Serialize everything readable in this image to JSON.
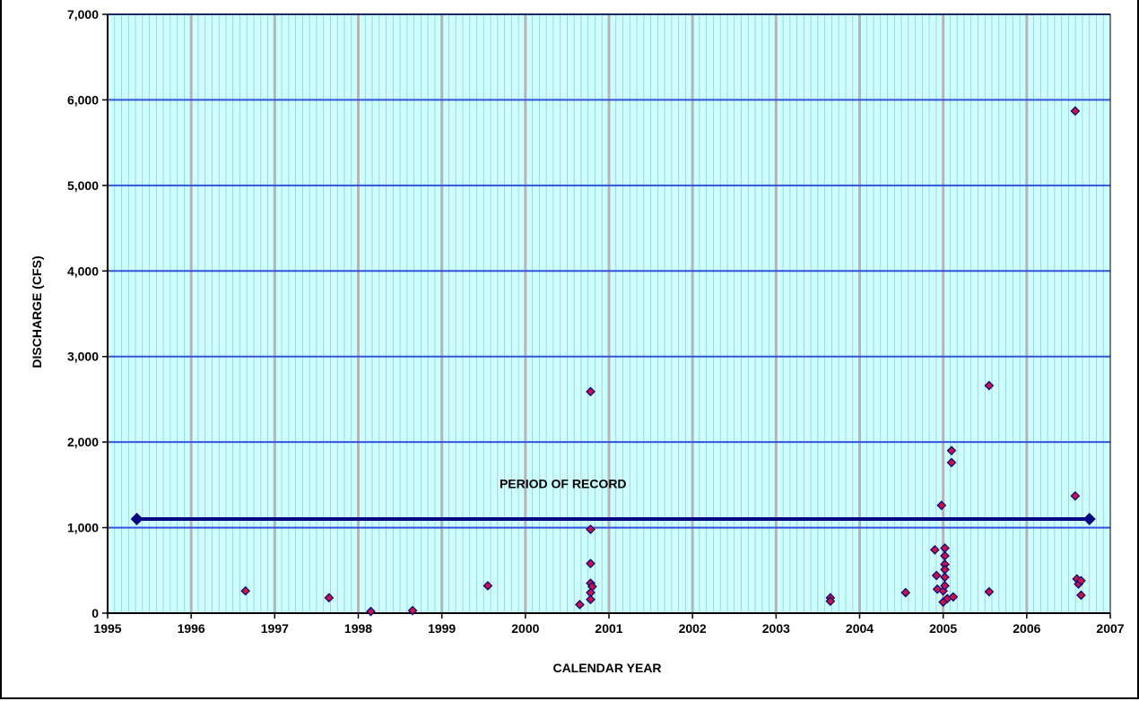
{
  "colors": {
    "plot_bg": "#ccffff",
    "minor_grid": "#a8c4c8",
    "major_vgrid": "#b5b5b5",
    "hgrid": "#3355dd",
    "marker_fill": "#cc1144",
    "marker_stroke": "#000080",
    "period_line": "#000080"
  },
  "chart_data": {
    "type": "scatter",
    "xlabel": "CALENDAR YEAR",
    "ylabel": "DISCHARGE (CFS)",
    "xlim": [
      1995,
      2007
    ],
    "ylim": [
      0,
      7000
    ],
    "x_ticks": [
      1995,
      1996,
      1997,
      1998,
      1999,
      2000,
      2001,
      2002,
      2003,
      2004,
      2005,
      2006,
      2007
    ],
    "y_ticks": [
      0,
      1000,
      2000,
      3000,
      4000,
      5000,
      6000,
      7000
    ],
    "y_tick_labels": [
      "0",
      "1,000",
      "2,000",
      "3,000",
      "4,000",
      "5,000",
      "6,000",
      "7,000"
    ],
    "grid": true,
    "annotations": [
      {
        "text": "PERIOD OF RECORD",
        "x": 2000.45,
        "y": 1250
      }
    ],
    "period_of_record": {
      "x_start": 1995.35,
      "x_end": 2006.75,
      "y": 1100
    },
    "points": [
      [
        1996.65,
        260
      ],
      [
        1997.65,
        180
      ],
      [
        1998.15,
        20
      ],
      [
        1998.65,
        30
      ],
      [
        1999.55,
        320
      ],
      [
        2000.65,
        100
      ],
      [
        2000.78,
        2590
      ],
      [
        2000.78,
        980
      ],
      [
        2000.78,
        580
      ],
      [
        2000.78,
        350
      ],
      [
        2000.8,
        310
      ],
      [
        2000.78,
        240
      ],
      [
        2000.78,
        160
      ],
      [
        2003.65,
        180
      ],
      [
        2003.65,
        140
      ],
      [
        2004.55,
        240
      ],
      [
        2004.9,
        740
      ],
      [
        2004.92,
        440
      ],
      [
        2004.93,
        280
      ],
      [
        2004.98,
        1260
      ],
      [
        2005.0,
        260
      ],
      [
        2005.02,
        760
      ],
      [
        2005.02,
        670
      ],
      [
        2005.02,
        570
      ],
      [
        2005.02,
        510
      ],
      [
        2005.02,
        420
      ],
      [
        2005.02,
        320
      ],
      [
        2005.0,
        130
      ],
      [
        2005.05,
        170
      ],
      [
        2005.1,
        1900
      ],
      [
        2005.1,
        1760
      ],
      [
        2005.12,
        190
      ],
      [
        2005.55,
        2660
      ],
      [
        2005.55,
        250
      ],
      [
        2006.58,
        5870
      ],
      [
        2006.58,
        1370
      ],
      [
        2006.6,
        400
      ],
      [
        2006.62,
        340
      ],
      [
        2006.65,
        380
      ],
      [
        2006.65,
        210
      ]
    ]
  }
}
